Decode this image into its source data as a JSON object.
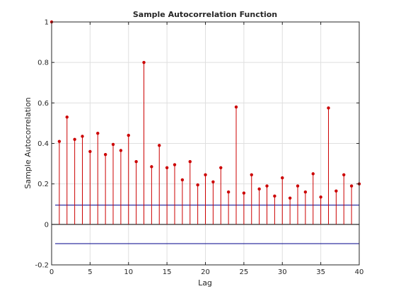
{
  "chart_data": {
    "type": "stem",
    "title": "Sample Autocorrelation Function",
    "xlabel": "Lag",
    "ylabel": "Sample Autocorrelation",
    "xlim": [
      0,
      40
    ],
    "ylim": [
      -0.2,
      1
    ],
    "xticks": [
      0,
      5,
      10,
      15,
      20,
      25,
      30,
      35,
      40
    ],
    "yticks": [
      -0.2,
      0,
      0.2,
      0.4,
      0.6,
      0.8,
      1
    ],
    "ytick_labels": [
      "-0.2",
      "0",
      "0.2",
      "0.4",
      "0.6",
      "0.8",
      "1"
    ],
    "grid": true,
    "series": [
      {
        "lags": [
          0,
          1,
          2,
          3,
          4,
          5,
          6,
          7,
          8,
          9,
          10,
          11,
          12,
          13,
          14,
          15,
          16,
          17,
          18,
          19,
          20,
          21,
          22,
          23,
          24,
          25,
          26,
          27,
          28,
          29,
          30,
          31,
          32,
          33,
          34,
          35,
          36,
          37,
          38,
          39,
          40
        ],
        "values": [
          1.0,
          0.41,
          0.53,
          0.42,
          0.435,
          0.36,
          0.45,
          0.345,
          0.395,
          0.365,
          0.44,
          0.31,
          0.8,
          0.285,
          0.39,
          0.28,
          0.295,
          0.22,
          0.31,
          0.195,
          0.245,
          0.21,
          0.28,
          0.16,
          0.58,
          0.155,
          0.245,
          0.175,
          0.19,
          0.14,
          0.23,
          0.13,
          0.19,
          0.16,
          0.25,
          0.135,
          0.575,
          0.165,
          0.245,
          0.19,
          0.2
        ]
      }
    ],
    "confidence_bounds": [
      0.095,
      -0.095
    ],
    "colors": {
      "stem": "#cc0000",
      "bounds": "#00008b",
      "zero_line": "#000000",
      "grid": "#dfdfdf",
      "axes": "#262626"
    }
  }
}
